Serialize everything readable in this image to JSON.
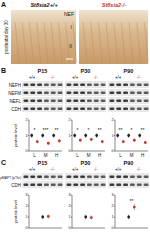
{
  "panels": [
    {
      "label": "A",
      "genotypes": [
        "St8sia2+/+",
        "St8sia2-/-"
      ],
      "side_label": "postnatal day 30",
      "stain": "NEF",
      "layers": [
        "I",
        "II"
      ]
    },
    {
      "label": "B",
      "ages": [
        "P15",
        "P30",
        "P90"
      ],
      "genotypes": [
        "+/+",
        "-/-"
      ],
      "blot_rows": [
        "NEFH",
        "NEFM",
        "NEFL",
        "CDH"
      ]
    },
    {
      "label": "C",
      "ages": [
        "P15",
        "P30",
        "P90"
      ],
      "genotypes": [
        "+/+",
        "-/-"
      ],
      "blot_rows": [
        "pMAPT (pThr)",
        "CDH"
      ]
    }
  ],
  "chart_data": [
    {
      "type": "scatter",
      "y_label": "protein level",
      "categories": [
        "L",
        "M",
        "H"
      ],
      "series": [
        {
          "color": "#222222",
          "values": [
            1,
            1,
            1
          ],
          "errors": [
            0.15,
            0.15,
            0.15
          ]
        },
        {
          "color": "#c0392b",
          "values": [
            0.6,
            0.5,
            0.65
          ],
          "errors": [
            0.12,
            0.1,
            0.12
          ]
        }
      ],
      "annotations": [
        "*",
        "***",
        "**"
      ],
      "ylim": [
        0,
        2
      ],
      "yticks": [
        0,
        1,
        2
      ]
    },
    {
      "type": "scatter",
      "categories": [
        "L",
        "M",
        "H"
      ],
      "series": [
        {
          "color": "#222222",
          "values": [
            1,
            1,
            1
          ],
          "errors": [
            0.15,
            0.15,
            0.15
          ]
        },
        {
          "color": "#c0392b",
          "values": [
            0.7,
            0.75,
            0.6
          ],
          "errors": [
            0.12,
            0.12,
            0.1
          ]
        }
      ],
      "annotations": [
        "*",
        "*",
        "**"
      ],
      "ylim": [
        0,
        2
      ],
      "yticks": [
        0,
        1,
        2
      ]
    },
    {
      "type": "scatter",
      "categories": [
        "L",
        "M",
        "H"
      ],
      "series": [
        {
          "color": "#222222",
          "values": [
            1,
            1,
            1
          ],
          "errors": [
            0.15,
            0.15,
            0.15
          ]
        },
        {
          "color": "#c0392b",
          "values": [
            0.6,
            0.7,
            0.55
          ],
          "errors": [
            0.1,
            0.12,
            0.1
          ]
        }
      ],
      "annotations": [
        "**",
        "*",
        "**"
      ],
      "ylim": [
        0,
        2
      ],
      "yticks": [
        0,
        1,
        2
      ]
    },
    {
      "type": "scatter",
      "y_label": "protein level",
      "categories": [
        null
      ],
      "series": [
        {
          "color": "#222222",
          "values": [
            1
          ],
          "errors": [
            0.2
          ]
        },
        {
          "color": "#c0392b",
          "values": [
            1.05
          ],
          "errors": [
            0.2
          ]
        }
      ],
      "annotations": [
        null
      ],
      "ylim": [
        0,
        3
      ],
      "yticks": [
        0,
        1,
        2,
        3
      ]
    },
    {
      "type": "scatter",
      "categories": [
        null
      ],
      "series": [
        {
          "color": "#222222",
          "values": [
            1
          ],
          "errors": [
            0.2
          ]
        },
        {
          "color": "#c0392b",
          "values": [
            0.95
          ],
          "errors": [
            0.2
          ]
        }
      ],
      "annotations": [
        null
      ],
      "ylim": [
        0,
        3
      ],
      "yticks": [
        0,
        1,
        2,
        3
      ]
    },
    {
      "type": "scatter",
      "categories": [
        null
      ],
      "series": [
        {
          "color": "#222222",
          "values": [
            1
          ],
          "errors": [
            0.2
          ]
        },
        {
          "color": "#c0392b",
          "values": [
            1.9
          ],
          "errors": [
            0.3
          ]
        }
      ],
      "annotations": [
        "**"
      ],
      "ylim": [
        0,
        3
      ],
      "yticks": [
        0,
        1,
        2,
        3
      ]
    }
  ]
}
